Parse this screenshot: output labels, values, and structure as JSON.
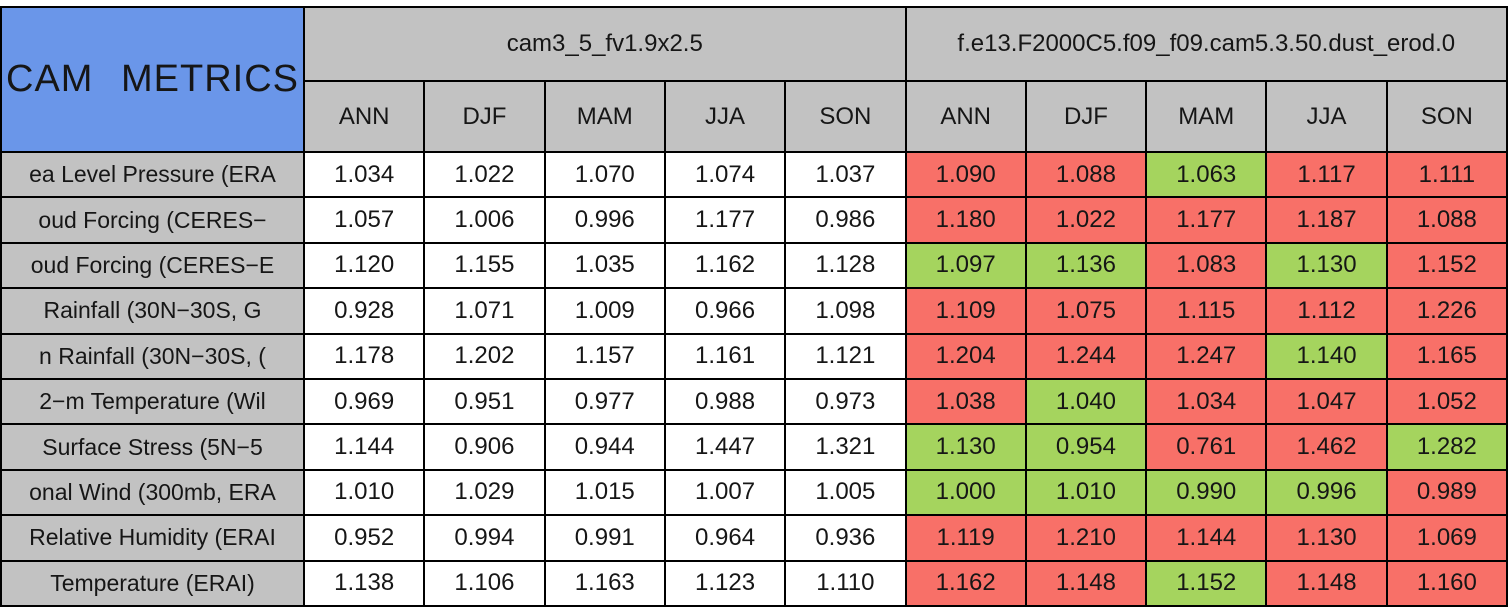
{
  "colors": {
    "red": "#F87068",
    "green": "#A5D45E",
    "blue": "#6A96E9",
    "gray": "#C2C2C2"
  },
  "chart_data": {
    "type": "table",
    "title": "CAM METRICS",
    "column_groups": [
      {
        "name": "cam3_5_fv1.9x2.5"
      },
      {
        "name": "f.e13.F2000C5.f09_f09.cam5.3.50.dust_erod.0"
      }
    ],
    "seasons": [
      "ANN",
      "DJF",
      "MAM",
      "JJA",
      "SON"
    ],
    "rows": [
      {
        "label": "ea Level Pressure (ERA",
        "group1_values": [
          "1.034",
          "1.022",
          "1.070",
          "1.074",
          "1.037"
        ],
        "group2_values": [
          "1.090",
          "1.088",
          "1.063",
          "1.117",
          "1.111"
        ],
        "group2_cell_colors": [
          "red",
          "red",
          "green",
          "red",
          "red"
        ]
      },
      {
        "label": "oud Forcing (CERES−",
        "group1_values": [
          "1.057",
          "1.006",
          "0.996",
          "1.177",
          "0.986"
        ],
        "group2_values": [
          "1.180",
          "1.022",
          "1.177",
          "1.187",
          "1.088"
        ],
        "group2_cell_colors": [
          "red",
          "red",
          "red",
          "red",
          "red"
        ]
      },
      {
        "label": "oud Forcing (CERES−E",
        "group1_values": [
          "1.120",
          "1.155",
          "1.035",
          "1.162",
          "1.128"
        ],
        "group2_values": [
          "1.097",
          "1.136",
          "1.083",
          "1.130",
          "1.152"
        ],
        "group2_cell_colors": [
          "green",
          "green",
          "red",
          "green",
          "red"
        ]
      },
      {
        "label": "Rainfall (30N−30S, G",
        "group1_values": [
          "0.928",
          "1.071",
          "1.009",
          "0.966",
          "1.098"
        ],
        "group2_values": [
          "1.109",
          "1.075",
          "1.115",
          "1.112",
          "1.226"
        ],
        "group2_cell_colors": [
          "red",
          "red",
          "red",
          "red",
          "red"
        ]
      },
      {
        "label": "n Rainfall (30N−30S, (",
        "group1_values": [
          "1.178",
          "1.202",
          "1.157",
          "1.161",
          "1.121"
        ],
        "group2_values": [
          "1.204",
          "1.244",
          "1.247",
          "1.140",
          "1.165"
        ],
        "group2_cell_colors": [
          "red",
          "red",
          "red",
          "green",
          "red"
        ]
      },
      {
        "label": "2−m Temperature (Wil",
        "group1_values": [
          "0.969",
          "0.951",
          "0.977",
          "0.988",
          "0.973"
        ],
        "group2_values": [
          "1.038",
          "1.040",
          "1.034",
          "1.047",
          "1.052"
        ],
        "group2_cell_colors": [
          "red",
          "green",
          "red",
          "red",
          "red"
        ]
      },
      {
        "label": "Surface Stress (5N−5",
        "group1_values": [
          "1.144",
          "0.906",
          "0.944",
          "1.447",
          "1.321"
        ],
        "group2_values": [
          "1.130",
          "0.954",
          "0.761",
          "1.462",
          "1.282"
        ],
        "group2_cell_colors": [
          "green",
          "green",
          "red",
          "red",
          "green"
        ]
      },
      {
        "label": "onal Wind (300mb, ERA",
        "group1_values": [
          "1.010",
          "1.029",
          "1.015",
          "1.007",
          "1.005"
        ],
        "group2_values": [
          "1.000",
          "1.010",
          "0.990",
          "0.996",
          "0.989"
        ],
        "group2_cell_colors": [
          "green",
          "green",
          "green",
          "green",
          "red"
        ]
      },
      {
        "label": "Relative Humidity (ERAI",
        "group1_values": [
          "0.952",
          "0.994",
          "0.991",
          "0.964",
          "0.936"
        ],
        "group2_values": [
          "1.119",
          "1.210",
          "1.144",
          "1.130",
          "1.069"
        ],
        "group2_cell_colors": [
          "red",
          "red",
          "red",
          "red",
          "red"
        ]
      },
      {
        "label": "Temperature (ERAI)",
        "group1_values": [
          "1.138",
          "1.106",
          "1.163",
          "1.123",
          "1.110"
        ],
        "group2_values": [
          "1.162",
          "1.148",
          "1.152",
          "1.148",
          "1.160"
        ],
        "group2_cell_colors": [
          "red",
          "red",
          "green",
          "red",
          "red"
        ]
      }
    ]
  }
}
